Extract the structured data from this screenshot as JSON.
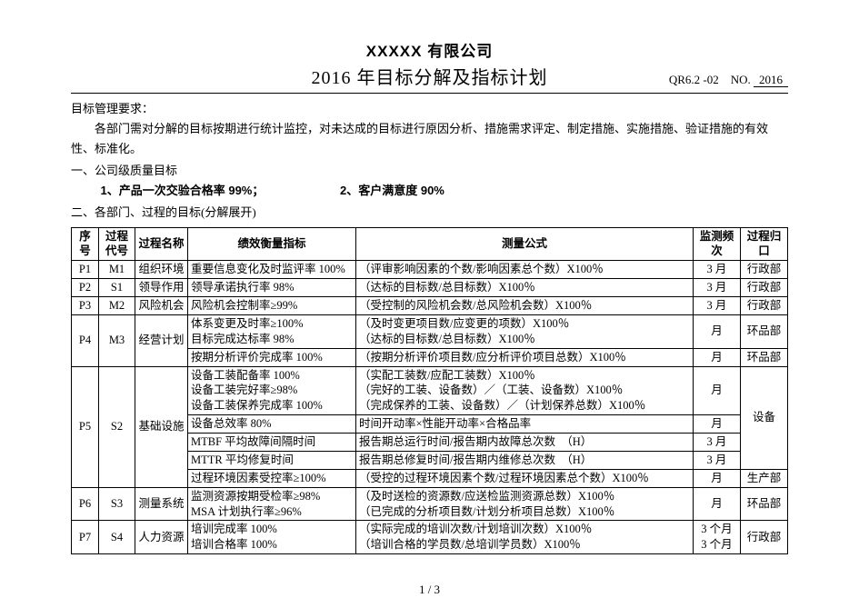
{
  "header": {
    "company": "XXXXX 有限公司",
    "title": "2016 年目标分解及指标计划",
    "doc_code": "QR6.2 -02",
    "doc_no_label": "NO.",
    "doc_no_value": "2016"
  },
  "intro": {
    "req_label": "目标管理要求：",
    "req_body": "各部门需对分解的目标按期进行统计监控，对未达成的目标进行原因分析、措施需求评定、制定措施、实施措施、验证措施的有效性、标准化。",
    "sec1": "一、公司级质量目标",
    "kpi1": "1、产品一次交验合格率 99%；",
    "kpi2": "2、客户满意度 90%",
    "sec2": "二、各部门、过程的目标(分解展开)"
  },
  "table": {
    "headers": {
      "seq": "序号",
      "code": "过程代号",
      "name": "过程名称",
      "kpi": "绩效衡量指标",
      "formula": "测量公式",
      "freq": "监测频次",
      "dept": "过程归口"
    },
    "rows": [
      {
        "seq": "P1",
        "code": "M1",
        "name": "组织环境",
        "kpi": "重要信息变化及时监评率 100%",
        "formula": "（评审影响因素的个数/影响因素总个数）X100％",
        "freq": "3 月",
        "dept": "行政部",
        "rowspan": {
          "seq": 1,
          "code": 1,
          "name": 1,
          "dept": 1
        }
      },
      {
        "seq": "P2",
        "code": "S1",
        "name": "领导作用",
        "kpi": "领导承诺执行率 98%",
        "formula": "（达标的目标数/总目标数）X100％",
        "freq": "3 月",
        "dept": "行政部",
        "rowspan": {
          "seq": 1,
          "code": 1,
          "name": 1,
          "dept": 1
        }
      },
      {
        "seq": "P3",
        "code": "M2",
        "name": "风险机会",
        "kpi": "风险机会控制率≥99%",
        "formula": "（受控制的风险机会数/总风险机会数）X100％",
        "freq": "3 月",
        "dept": "行政部",
        "rowspan": {
          "seq": 1,
          "code": 1,
          "name": 1,
          "dept": 1
        }
      },
      {
        "seq": "P4",
        "code": "M3",
        "name": "经营计划",
        "kpi": "体系变更及时率≥100%\n目标完成达标率 98%",
        "formula": "（及时变更项目数/应变更的项数）X100％\n（达标的目标数/总目标数）X100％",
        "freq": "月",
        "dept": "环品部",
        "rowspan": {
          "seq": 2,
          "code": 2,
          "name": 2,
          "dept": 1
        }
      },
      {
        "kpi": "按期分析评价完成率 100%",
        "formula": "（按期分析评价项目数/应分析评价项目总数）X100％",
        "freq": "月",
        "dept": "环品部",
        "rowspan": {
          "dept": 1
        }
      },
      {
        "seq": "P5",
        "code": "S2",
        "name": "基础设施",
        "kpi": "设备工装配备率 100%\n设备工装完好率≥98%\n设备工装保养完成率 100%",
        "formula": "（实配工装数/应配工装数）X100％\n（完好的工装、设备数）／（工装、设备数）X100％\n（完成保养的工装、设备数）／（计划保养总数）X100％",
        "freq": "月",
        "dept": "设备",
        "rowspan": {
          "seq": 5,
          "code": 5,
          "name": 5,
          "dept": 4,
          "freq": 1
        }
      },
      {
        "kpi": "设备总效率 80%",
        "formula": "时间开动率×性能开动率×合格品率",
        "freq": "月",
        "rowspan": {}
      },
      {
        "kpi": "MTBF 平均故障间隔时间",
        "formula": "报告期总运行时间/报告期内故障总次数　（H）",
        "freq": "3 月",
        "rowspan": {}
      },
      {
        "kpi": "MTTR 平均修复时间",
        "formula": "报告期总修复时间/报告期内维修总次数　（H）",
        "freq": "3 月",
        "rowspan": {}
      },
      {
        "kpi": "过程环境因素受控率≥100%",
        "formula": "（受控的过程环境因素个数/过程环境因素总个数）X100％",
        "freq": "月",
        "dept": "生产部",
        "rowspan": {
          "dept": 1
        }
      },
      {
        "seq": "P6",
        "code": "S3",
        "name": "测量系统",
        "kpi": "监测资源按期受检率≥98%\nMSA 计划执行率≥96%",
        "formula": "（及时送检的资源数/应送检监测资源总数）X100％\n（已完成的分析项目数/计划分析项目总数）X100％",
        "freq": "月",
        "dept": "环品部",
        "rowspan": {
          "seq": 1,
          "code": 1,
          "name": 1,
          "dept": 1
        }
      },
      {
        "seq": "P7",
        "code": "S4",
        "name": "人力资源",
        "kpi": "培训完成率 100%\n培训合格率 100%",
        "formula": "（实际完成的培训次数/计划培训次数）X100％\n（培训合格的学员数/总培训学员数）X100％",
        "freq": "3 个月\n3 个月",
        "dept": "行政部",
        "rowspan": {
          "seq": 1,
          "code": 1,
          "name": 1,
          "dept": 1
        }
      }
    ]
  },
  "page_num": "1 / 3"
}
